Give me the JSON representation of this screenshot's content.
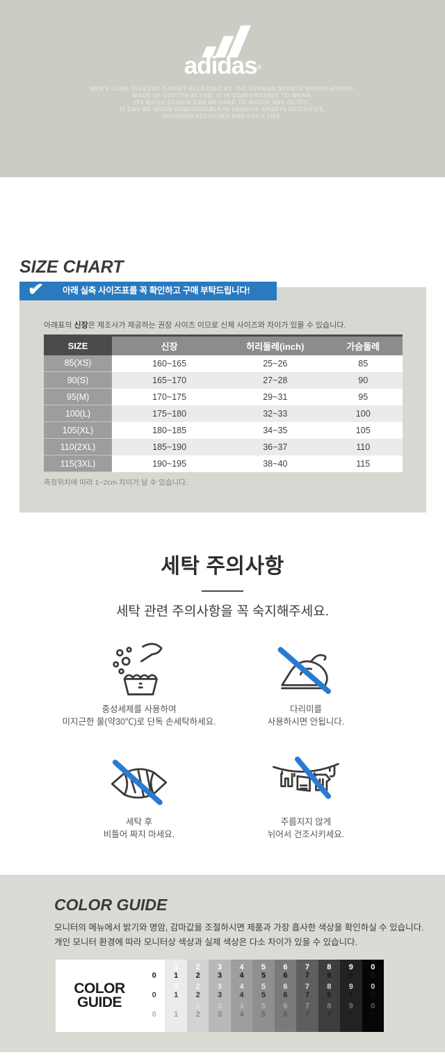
{
  "brand": {
    "logo_text": "adidas",
    "registered_mark": "®",
    "description_lines": [
      "MEN'S LONG-SLEEVED T-SHIRT RELEASED BY THE GERMAN SPORTS BRAND ADIDAS.",
      "MADE OF COTTON BLEND, IT IS COMFORTABLE TO WEAR.",
      "ITS BASIC DESIGN CAN BE USED TO MATCH ANY OUTFIT.",
      "IT CAN BE WORN COMFORTABLY IN VARIOUS SPORTS ACTIVITIES,",
      "OUTDOOR ACTIVITIES AND DAILY LIFE."
    ]
  },
  "size_chart": {
    "title": "SIZE CHART",
    "banner_text": "아래 실측 사이즈표를 꼭 확인하고 구매 부탁드립니다!",
    "check_glyph": "✔",
    "note_prefix": "아래표의 ",
    "note_bold": "신장",
    "note_suffix": "은 제조사가 제공하는 권장 사이즈 이므로 신체 사이즈와 차이가 있을 수 있습니다.",
    "columns": [
      "SIZE",
      "신장",
      "허리둘레(inch)",
      "가슴둘레"
    ],
    "rows": [
      {
        "size": "85(XS)",
        "height": "160~165",
        "waist": "25~26",
        "chest": "85"
      },
      {
        "size": "90(S)",
        "height": "165~170",
        "waist": "27~28",
        "chest": "90"
      },
      {
        "size": "95(M)",
        "height": "170~175",
        "waist": "29~31",
        "chest": "95"
      },
      {
        "size": "100(L)",
        "height": "175~180",
        "waist": "32~33",
        "chest": "100"
      },
      {
        "size": "105(XL)",
        "height": "180~185",
        "waist": "34~35",
        "chest": "105"
      },
      {
        "size": "110(2XL)",
        "height": "185~190",
        "waist": "36~37",
        "chest": "110"
      },
      {
        "size": "115(3XL)",
        "height": "190~195",
        "waist": "38~40",
        "chest": "115"
      }
    ],
    "footnote": "측정위치에 따라 1~2cm 차이가 날 수 있습니다."
  },
  "washing": {
    "title": "세탁 주의사항",
    "subtitle": "세탁 관련 주의사항을 꼭 숙지해주세요.",
    "items": [
      {
        "icon": "hand-wash-icon",
        "lines": [
          "중성세제를 사용하여",
          "미지근한 물(약30℃)로 단독 손세탁하세요."
        ]
      },
      {
        "icon": "no-iron-icon",
        "lines": [
          "다리미를",
          "사용하시면 안됩니다."
        ]
      },
      {
        "icon": "no-wring-icon",
        "lines": [
          "세탁 후",
          "비틀어 짜지 마세요."
        ]
      },
      {
        "icon": "no-hang-dry-icon",
        "lines": [
          "주름지지 않게",
          "뉘어서 건조시키세요."
        ]
      }
    ]
  },
  "color_guide": {
    "title": "COLOR GUIDE",
    "description_lines": [
      "모니터의 메뉴에서 밝기와 명암, 감마값을 조절하시면 제품과 가장 흡사한 색상을 확인하실 수 있습니다.",
      "개인 모니터 환경에 따라 모니터상 색상과 실제 색상은 다소 차이가 있을 수 있습니다."
    ],
    "strip_label_lines": [
      "COLOR",
      "GUIDE"
    ],
    "columns": [
      {
        "digit": "0",
        "bg": "#ffffff"
      },
      {
        "digit": "1",
        "bg": "#ebebeb"
      },
      {
        "digit": "2",
        "bg": "#d3d3d3"
      },
      {
        "digit": "3",
        "bg": "#b8b8b8"
      },
      {
        "digit": "4",
        "bg": "#9e9e9e"
      },
      {
        "digit": "5",
        "bg": "#8f8f8f"
      },
      {
        "digit": "6",
        "bg": "#7a7a7a"
      },
      {
        "digit": "7",
        "bg": "#5e5e5e"
      },
      {
        "digit": "8",
        "bg": "#3e3e3e"
      },
      {
        "digit": "9",
        "bg": "#222222"
      },
      {
        "digit": "0",
        "bg": "#060606"
      }
    ]
  },
  "colors": {
    "top_band_bg": "#cbccc4",
    "banner_blue": "#2a7abf",
    "slash_blue": "#2b7ad2",
    "table_box_bg": "#d8d8d2",
    "header_dark": "#4b4b4b",
    "header_mid": "#8c8c8c",
    "size_col_bg": "#9d9d9d",
    "stripe_row_bg": "#ebebeb",
    "bottom_section_bg": "#dbdbd5"
  }
}
